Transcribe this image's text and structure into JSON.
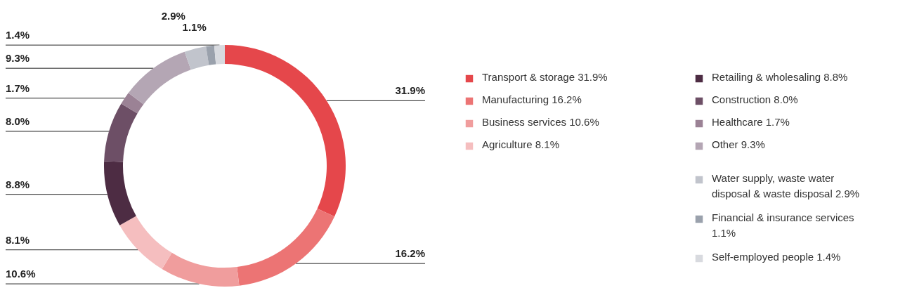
{
  "chart_data": {
    "type": "donut",
    "categories": [
      "Transport & storage",
      "Manufacturing",
      "Business services",
      "Agriculture",
      "Retailing & wholesaling",
      "Construction",
      "Healthcare",
      "Other",
      "Water supply, waste water disposal & waste disposal",
      "Financial & insurance services",
      "Self-employed people"
    ],
    "values": [
      31.9,
      16.2,
      10.6,
      8.1,
      8.8,
      8.0,
      1.7,
      9.3,
      2.9,
      1.1,
      1.4
    ],
    "colors": [
      "#e5474b",
      "#ec7474",
      "#f09d9d",
      "#f5bebf",
      "#4d2c43",
      "#6d4f66",
      "#9b8295",
      "#b4a6b4",
      "#c1c4cc",
      "#9aa1ac",
      "#d8dadf"
    ],
    "value_labels": [
      "31.9%",
      "16.2%",
      "10.6%",
      "8.1%",
      "8.8%",
      "8.0%",
      "1.7%",
      "9.3%",
      "2.9%",
      "1.1%",
      "1.4%"
    ],
    "legend": "right"
  }
}
